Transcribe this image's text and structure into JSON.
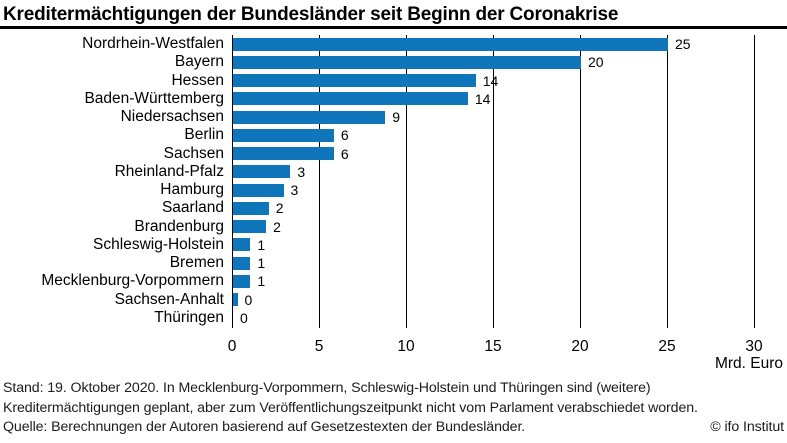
{
  "chart_data": {
    "type": "bar",
    "orientation": "horizontal",
    "title": "Kreditermächtigungen der Bundesländer seit Beginn der Coronakrise",
    "categories": [
      "Nordrhein-Westfalen",
      "Bayern",
      "Hessen",
      "Baden-Württemberg",
      "Niedersachsen",
      "Berlin",
      "Sachsen",
      "Rheinland-Pfalz",
      "Hamburg",
      "Saarland",
      "Brandenburg",
      "Schleswig-Holstein",
      "Bremen",
      "Mecklenburg-Vorpommern",
      "Sachsen-Anhalt",
      "Thüringen"
    ],
    "values": [
      25,
      20,
      14,
      14,
      9,
      6,
      6,
      3,
      3,
      2,
      2,
      1,
      1,
      1,
      0,
      0
    ],
    "bar_lengths_mrd": [
      25,
      20,
      13.95,
      13.5,
      8.75,
      5.8,
      5.8,
      3.3,
      2.9,
      2.05,
      1.9,
      1.0,
      1.0,
      1.0,
      0.26,
      0
    ],
    "xlabel": "Mrd. Euro",
    "xticks": [
      0,
      5,
      10,
      15,
      20,
      25,
      30
    ],
    "xlim": [
      0,
      30
    ],
    "grid": true,
    "bar_color": "#0f76bc",
    "gridline_color": "#000000",
    "legend": "none"
  },
  "footer": {
    "line1": "Stand: 19. Oktober 2020. In Mecklenburg-Vorpommern, Schleswig-Holstein und Thüringen sind (weitere)",
    "line2": "Kreditermächtigungen geplant, aber zum Veröffentlichungszeitpunkt nicht vom Parlament verabschiedet worden.",
    "source": "Quelle: Berechnungen der Autoren basierend auf Gesetzestexten der Bundesländer.",
    "copyright": "© ifo Institut"
  }
}
